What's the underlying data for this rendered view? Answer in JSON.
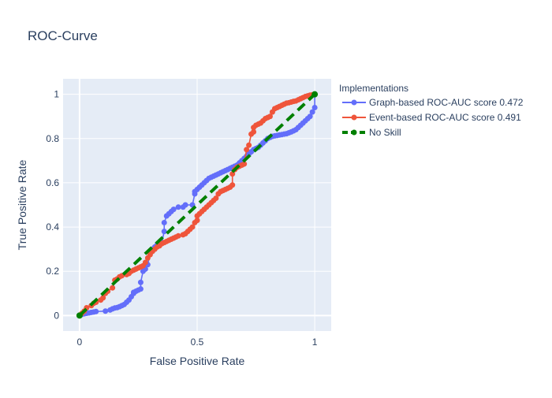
{
  "chart_data": {
    "type": "line",
    "title": "ROC-Curve",
    "xlabel": "False Positive Rate",
    "ylabel": "True Positive Rate",
    "xlim": [
      -0.07,
      1.07
    ],
    "ylim": [
      -0.07,
      1.07
    ],
    "x_ticks": [
      0,
      0.5,
      1
    ],
    "x_tick_labels": [
      "0",
      "0.5",
      "1"
    ],
    "y_ticks": [
      0,
      0.2,
      0.4,
      0.6,
      0.8,
      1
    ],
    "y_tick_labels": [
      "0",
      "0.2",
      "0.4",
      "0.6",
      "0.8",
      "1"
    ],
    "grid": true,
    "legend": {
      "title": "Implementations",
      "placement": "right"
    },
    "series": [
      {
        "name": "Graph-based ROC-AUC score 0.472",
        "color": "#636efa",
        "dash": "solid",
        "x": [
          0,
          0.01,
          0.02,
          0.03,
          0.04,
          0.05,
          0.06,
          0.07,
          0.11,
          0.13,
          0.14,
          0.15,
          0.16,
          0.17,
          0.18,
          0.19,
          0.2,
          0.21,
          0.22,
          0.23,
          0.23,
          0.24,
          0.25,
          0.26,
          0.26,
          0.27,
          0.28,
          0.29,
          0.3,
          0.31,
          0.32,
          0.33,
          0.35,
          0.36,
          0.36,
          0.37,
          0.38,
          0.39,
          0.4,
          0.42,
          0.44,
          0.45,
          0.48,
          0.49,
          0.49,
          0.5,
          0.51,
          0.52,
          0.53,
          0.54,
          0.55,
          0.56,
          0.57,
          0.58,
          0.59,
          0.6,
          0.61,
          0.62,
          0.63,
          0.64,
          0.65,
          0.66,
          0.67,
          0.68,
          0.69,
          0.7,
          0.71,
          0.72,
          0.73,
          0.74,
          0.75,
          0.76,
          0.77,
          0.78,
          0.79,
          0.8,
          0.81,
          0.82,
          0.83,
          0.84,
          0.85,
          0.86,
          0.87,
          0.88,
          0.89,
          0.9,
          0.91,
          0.92,
          0.93,
          0.94,
          0.95,
          0.96,
          0.97,
          0.98,
          0.99,
          1.0,
          1.0
        ],
        "y": [
          0,
          0.005,
          0.008,
          0.01,
          0.012,
          0.014,
          0.016,
          0.018,
          0.02,
          0.025,
          0.03,
          0.034,
          0.036,
          0.04,
          0.045,
          0.05,
          0.06,
          0.07,
          0.085,
          0.1,
          0.105,
          0.11,
          0.115,
          0.12,
          0.15,
          0.2,
          0.21,
          0.23,
          0.28,
          0.3,
          0.31,
          0.32,
          0.33,
          0.38,
          0.42,
          0.45,
          0.46,
          0.47,
          0.48,
          0.49,
          0.49,
          0.5,
          0.5,
          0.55,
          0.56,
          0.57,
          0.58,
          0.59,
          0.6,
          0.61,
          0.62,
          0.625,
          0.63,
          0.635,
          0.64,
          0.645,
          0.65,
          0.655,
          0.66,
          0.665,
          0.67,
          0.675,
          0.68,
          0.69,
          0.7,
          0.71,
          0.72,
          0.73,
          0.74,
          0.75,
          0.755,
          0.76,
          0.77,
          0.78,
          0.79,
          0.8,
          0.805,
          0.81,
          0.812,
          0.814,
          0.816,
          0.818,
          0.82,
          0.822,
          0.826,
          0.83,
          0.835,
          0.84,
          0.85,
          0.86,
          0.87,
          0.88,
          0.89,
          0.9,
          0.92,
          0.94,
          1.0
        ]
      },
      {
        "name": "Event-based ROC-AUC score 0.491",
        "color": "#ef553b",
        "dash": "solid",
        "x": [
          0,
          0.01,
          0.02,
          0.03,
          0.05,
          0.06,
          0.07,
          0.09,
          0.1,
          0.11,
          0.12,
          0.14,
          0.15,
          0.16,
          0.17,
          0.18,
          0.2,
          0.21,
          0.22,
          0.23,
          0.24,
          0.25,
          0.26,
          0.27,
          0.28,
          0.29,
          0.3,
          0.31,
          0.32,
          0.33,
          0.34,
          0.35,
          0.36,
          0.37,
          0.38,
          0.39,
          0.4,
          0.41,
          0.42,
          0.44,
          0.45,
          0.46,
          0.47,
          0.48,
          0.49,
          0.5,
          0.5,
          0.51,
          0.52,
          0.53,
          0.54,
          0.55,
          0.56,
          0.57,
          0.58,
          0.59,
          0.6,
          0.61,
          0.62,
          0.63,
          0.64,
          0.65,
          0.65,
          0.66,
          0.67,
          0.68,
          0.69,
          0.7,
          0.71,
          0.72,
          0.73,
          0.74,
          0.74,
          0.75,
          0.76,
          0.77,
          0.78,
          0.79,
          0.8,
          0.81,
          0.82,
          0.83,
          0.84,
          0.85,
          0.86,
          0.87,
          0.88,
          0.89,
          0.9,
          0.91,
          0.92,
          0.93,
          0.94,
          0.95,
          0.96,
          0.97,
          0.98,
          0.99,
          1.0
        ],
        "y": [
          0,
          0.01,
          0.02,
          0.035,
          0.045,
          0.055,
          0.06,
          0.07,
          0.08,
          0.1,
          0.11,
          0.125,
          0.16,
          0.165,
          0.175,
          0.18,
          0.185,
          0.19,
          0.2,
          0.205,
          0.21,
          0.215,
          0.22,
          0.225,
          0.24,
          0.26,
          0.275,
          0.29,
          0.3,
          0.31,
          0.315,
          0.325,
          0.33,
          0.335,
          0.34,
          0.345,
          0.35,
          0.355,
          0.36,
          0.365,
          0.37,
          0.38,
          0.39,
          0.4,
          0.42,
          0.43,
          0.45,
          0.46,
          0.47,
          0.48,
          0.49,
          0.5,
          0.51,
          0.52,
          0.53,
          0.55,
          0.56,
          0.565,
          0.57,
          0.575,
          0.58,
          0.59,
          0.64,
          0.66,
          0.67,
          0.675,
          0.68,
          0.685,
          0.75,
          0.77,
          0.82,
          0.83,
          0.85,
          0.86,
          0.865,
          0.87,
          0.88,
          0.89,
          0.895,
          0.9,
          0.92,
          0.935,
          0.94,
          0.945,
          0.95,
          0.955,
          0.96,
          0.962,
          0.965,
          0.968,
          0.97,
          0.975,
          0.98,
          0.985,
          0.99,
          0.993,
          0.996,
          0.998,
          1.0
        ]
      },
      {
        "name": "No Skill",
        "color": "#008000",
        "dash": "dash",
        "x": [
          0,
          1
        ],
        "y": [
          0,
          1
        ]
      }
    ]
  }
}
